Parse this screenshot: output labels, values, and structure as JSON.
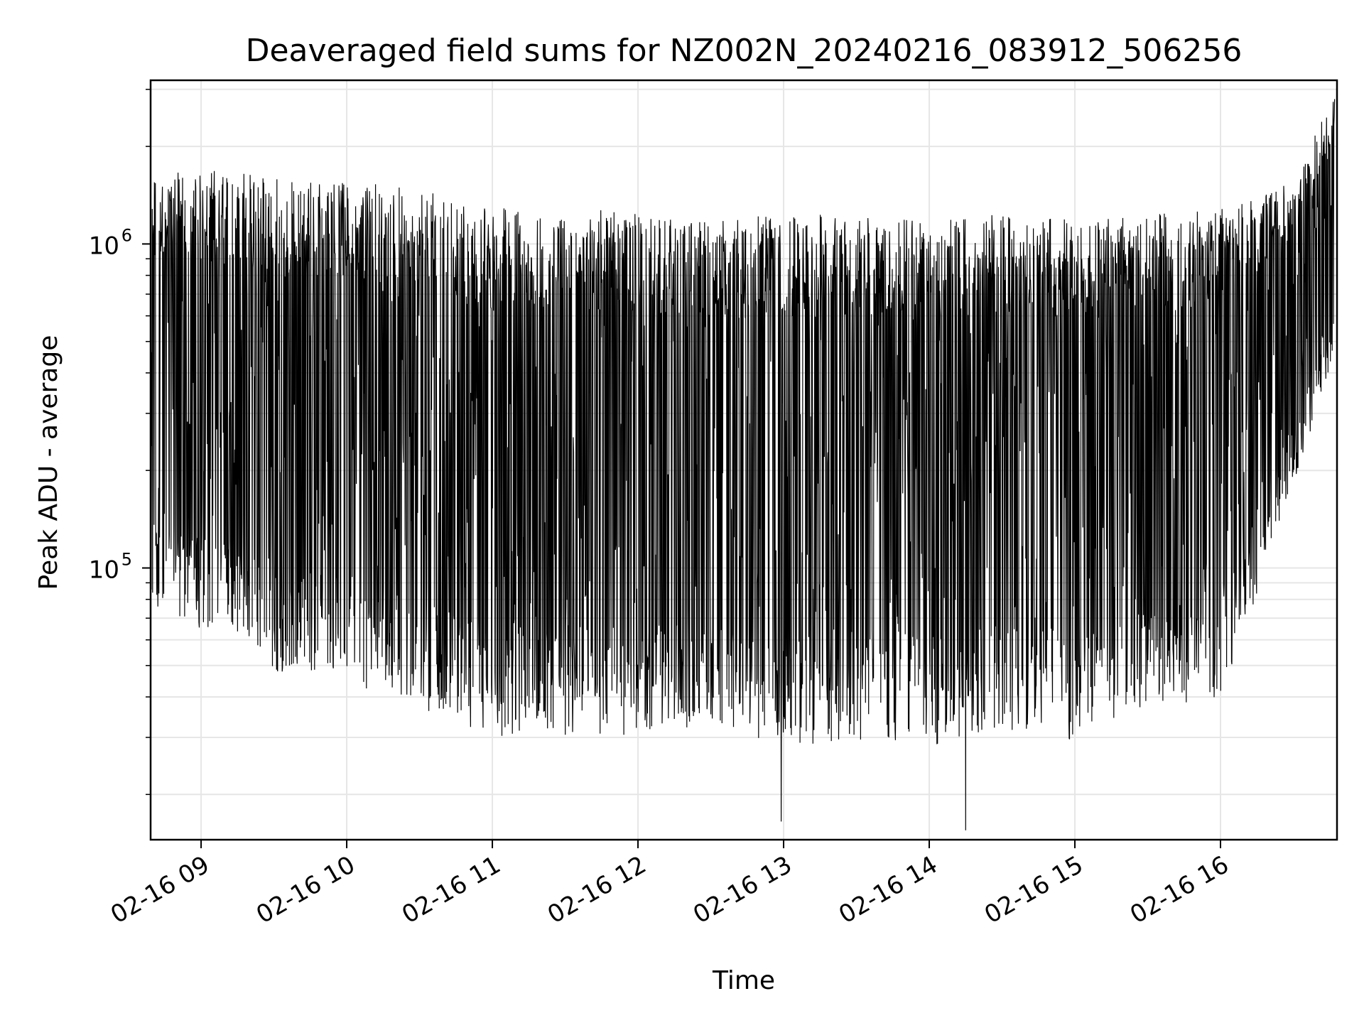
{
  "chart_data": {
    "type": "line",
    "title": "Deaveraged field sums for NZ002N_20240216_083912_506256",
    "xlabel": "Time",
    "ylabel": "Peak ADU - average",
    "x_range": [
      "2024-02-16 08:39:12",
      "2024-02-16 16:48:00"
    ],
    "y_scale": "log",
    "ylim": [
      14500,
      3200000
    ],
    "grid": true,
    "x_ticks": [
      {
        "value": "2024-02-16 09:00",
        "label": "02-16 09"
      },
      {
        "value": "2024-02-16 10:00",
        "label": "02-16 10"
      },
      {
        "value": "2024-02-16 11:00",
        "label": "02-16 11"
      },
      {
        "value": "2024-02-16 12:00",
        "label": "02-16 12"
      },
      {
        "value": "2024-02-16 13:00",
        "label": "02-16 13"
      },
      {
        "value": "2024-02-16 14:00",
        "label": "02-16 14"
      },
      {
        "value": "2024-02-16 15:00",
        "label": "02-16 15"
      },
      {
        "value": "2024-02-16 16:00",
        "label": "02-16 16"
      }
    ],
    "y_ticks": [
      {
        "value": 100000,
        "base": "10",
        "exp": "5"
      },
      {
        "value": 1000000,
        "base": "10",
        "exp": "6"
      }
    ],
    "series": [
      {
        "color": "#000000",
        "upper_envelope": [
          {
            "x": "2024-02-16 08:40",
            "y": 1550000
          },
          {
            "x": "2024-02-16 09:00",
            "y": 1600000
          },
          {
            "x": "2024-02-16 09:30",
            "y": 1500000
          },
          {
            "x": "2024-02-16 10:00",
            "y": 1450000
          },
          {
            "x": "2024-02-16 10:30",
            "y": 1400000
          },
          {
            "x": "2024-02-16 11:00",
            "y": 1200000
          },
          {
            "x": "2024-02-16 11:30",
            "y": 1250000
          },
          {
            "x": "2024-02-16 12:00",
            "y": 1150000
          },
          {
            "x": "2024-02-16 12:30",
            "y": 1100000
          },
          {
            "x": "2024-02-16 13:00",
            "y": 1150000
          },
          {
            "x": "2024-02-16 13:30",
            "y": 1150000
          },
          {
            "x": "2024-02-16 14:00",
            "y": 1100000
          },
          {
            "x": "2024-02-16 14:30",
            "y": 1150000
          },
          {
            "x": "2024-02-16 15:00",
            "y": 1100000
          },
          {
            "x": "2024-02-16 15:30",
            "y": 1150000
          },
          {
            "x": "2024-02-16 16:00",
            "y": 1200000
          },
          {
            "x": "2024-02-16 16:30",
            "y": 1500000
          },
          {
            "x": "2024-02-16 16:47",
            "y": 2800000
          }
        ],
        "lower_envelope": [
          {
            "x": "2024-02-16 08:40",
            "y": 75000
          },
          {
            "x": "2024-02-16 09:00",
            "y": 62000
          },
          {
            "x": "2024-02-16 09:30",
            "y": 48000
          },
          {
            "x": "2024-02-16 10:00",
            "y": 45000
          },
          {
            "x": "2024-02-16 10:30",
            "y": 36000
          },
          {
            "x": "2024-02-16 11:00",
            "y": 30000
          },
          {
            "x": "2024-02-16 11:30",
            "y": 30000
          },
          {
            "x": "2024-02-16 12:00",
            "y": 30000
          },
          {
            "x": "2024-02-16 12:30",
            "y": 33000
          },
          {
            "x": "2024-02-16 13:00",
            "y": 28000
          },
          {
            "x": "2024-02-16 13:30",
            "y": 29000
          },
          {
            "x": "2024-02-16 14:00",
            "y": 28000
          },
          {
            "x": "2024-02-16 14:30",
            "y": 32000
          },
          {
            "x": "2024-02-16 15:00",
            "y": 29000
          },
          {
            "x": "2024-02-16 15:30",
            "y": 38000
          },
          {
            "x": "2024-02-16 16:00",
            "y": 38000
          },
          {
            "x": "2024-02-16 16:30",
            "y": 180000
          },
          {
            "x": "2024-02-16 16:47",
            "y": 450000
          }
        ],
        "notable_points": [
          {
            "x": "2024-02-16 12:59",
            "y": 16500
          },
          {
            "x": "2024-02-16 14:15",
            "y": 15500
          },
          {
            "x": "2024-02-16 16:47",
            "y": 2800000
          }
        ]
      }
    ]
  }
}
